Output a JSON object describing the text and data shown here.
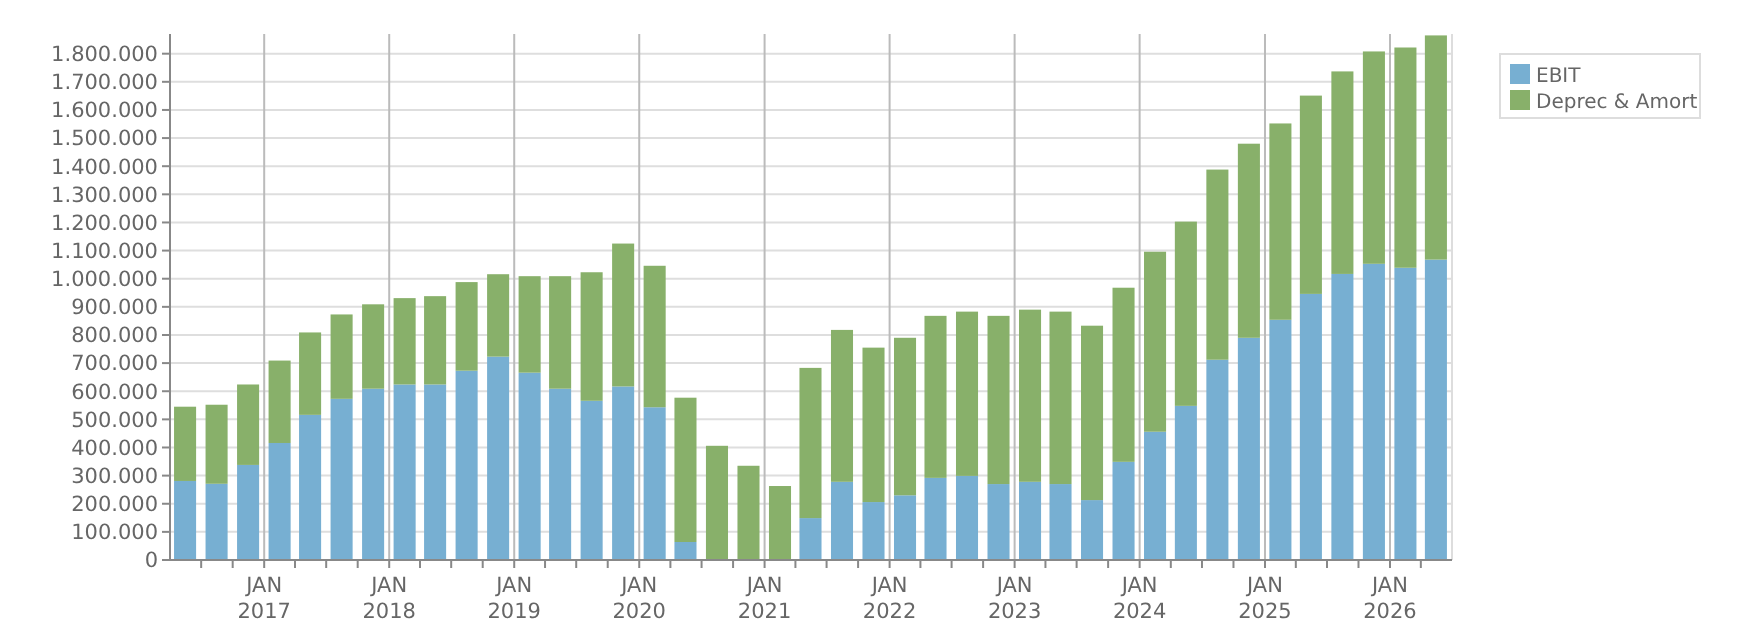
{
  "chart_data": {
    "type": "bar",
    "stacked": true,
    "x": [
      "2016-05-15",
      "2016-08-15",
      "2016-11-15",
      "2017-02-15",
      "2017-05-15",
      "2017-08-15",
      "2017-11-15",
      "2018-02-15",
      "2018-05-15",
      "2018-08-15",
      "2018-11-15",
      "2019-02-15",
      "2019-05-15",
      "2019-08-15",
      "2019-11-15",
      "2020-02-15",
      "2020-05-15",
      "2020-08-15",
      "2020-11-15",
      "2021-02-15",
      "2021-05-15",
      "2021-08-15",
      "2021-11-15",
      "2022-02-15",
      "2022-05-15",
      "2022-08-15",
      "2022-11-15",
      "2023-02-15",
      "2023-05-15",
      "2023-08-15",
      "2023-11-15",
      "2024-02-15",
      "2024-05-15",
      "2024-08-15",
      "2024-11-15",
      "2025-02-15",
      "2025-05-15",
      "2025-08-15",
      "2025-11-15",
      "2026-02-15",
      "2026-05-15"
    ],
    "series": [
      {
        "name": "EBIT",
        "color": "#77afd2",
        "values": [
          281000,
          271000,
          338000,
          416000,
          516000,
          573000,
          609000,
          624000,
          624000,
          673000,
          723000,
          666000,
          609000,
          566000,
          617000,
          543000,
          64000,
          0,
          0,
          0,
          149000,
          278000,
          206000,
          230000,
          292000,
          299000,
          270000,
          278000,
          270000,
          213000,
          349000,
          456000,
          548000,
          712000,
          790000,
          854000,
          946000,
          1017000,
          1053000,
          1039000,
          1068000
        ]
      },
      {
        "name": "Deprec & Amort",
        "color": "#88b06a",
        "values": [
          264000,
          281000,
          286000,
          293000,
          293000,
          300000,
          300000,
          307000,
          314000,
          315000,
          293000,
          343000,
          400000,
          457000,
          508000,
          503000,
          513000,
          406000,
          335000,
          263000,
          534000,
          540000,
          549000,
          560000,
          576000,
          584000,
          598000,
          612000,
          613000,
          620000,
          619000,
          640000,
          655000,
          676000,
          690000,
          698000,
          705000,
          720000,
          755000,
          783000,
          797000
        ]
      }
    ],
    "xlim": [
      "2016-04-01",
      "2026-07-01"
    ],
    "xticks": [
      {
        "value": "2016-07-01",
        "label": null
      },
      {
        "value": "2016-10-01",
        "label": null
      },
      {
        "value": "2017-01-01",
        "label": "JAN 2017"
      },
      {
        "value": "2017-04-01",
        "label": null
      },
      {
        "value": "2017-07-01",
        "label": null
      },
      {
        "value": "2017-10-01",
        "label": null
      },
      {
        "value": "2018-01-01",
        "label": "JAN 2018"
      },
      {
        "value": "2018-04-01",
        "label": null
      },
      {
        "value": "2018-07-01",
        "label": null
      },
      {
        "value": "2018-10-01",
        "label": null
      },
      {
        "value": "2019-01-01",
        "label": "JAN 2019"
      },
      {
        "value": "2019-04-01",
        "label": null
      },
      {
        "value": "2019-07-01",
        "label": null
      },
      {
        "value": "2019-10-01",
        "label": null
      },
      {
        "value": "2020-01-01",
        "label": "JAN 2020"
      },
      {
        "value": "2020-04-01",
        "label": null
      },
      {
        "value": "2020-07-01",
        "label": null
      },
      {
        "value": "2020-10-01",
        "label": null
      },
      {
        "value": "2021-01-01",
        "label": "JAN 2021"
      },
      {
        "value": "2021-04-01",
        "label": null
      },
      {
        "value": "2021-07-01",
        "label": null
      },
      {
        "value": "2021-10-01",
        "label": null
      },
      {
        "value": "2022-01-01",
        "label": "JAN 2022"
      },
      {
        "value": "2022-04-01",
        "label": null
      },
      {
        "value": "2022-07-01",
        "label": null
      },
      {
        "value": "2022-10-01",
        "label": null
      },
      {
        "value": "2023-01-01",
        "label": "JAN 2023"
      },
      {
        "value": "2023-04-01",
        "label": null
      },
      {
        "value": "2023-07-01",
        "label": null
      },
      {
        "value": "2023-10-01",
        "label": null
      },
      {
        "value": "2024-01-01",
        "label": "JAN 2024"
      },
      {
        "value": "2024-04-01",
        "label": null
      },
      {
        "value": "2024-07-01",
        "label": null
      },
      {
        "value": "2024-10-01",
        "label": null
      },
      {
        "value": "2025-01-01",
        "label": "JAN 2025"
      },
      {
        "value": "2025-04-01",
        "label": null
      },
      {
        "value": "2025-07-01",
        "label": null
      },
      {
        "value": "2025-10-01",
        "label": null
      },
      {
        "value": "2026-01-01",
        "label": "JAN 2026"
      },
      {
        "value": "2026-04-01",
        "label": null
      }
    ],
    "ylim": [
      0,
      1870000
    ],
    "yticks": [
      0,
      {
        "value": 100000,
        "label": "100.000"
      },
      {
        "value": 200000,
        "label": "200.000"
      },
      {
        "value": 300000,
        "label": "300.000"
      },
      {
        "value": 400000,
        "label": "400.000"
      },
      {
        "value": 500000,
        "label": "500.000"
      },
      {
        "value": 600000,
        "label": "600.000"
      },
      {
        "value": 700000,
        "label": "700.000"
      },
      {
        "value": 800000,
        "label": "800.000"
      },
      {
        "value": 900000,
        "label": "900.000"
      },
      {
        "value": 1000000,
        "label": "1.000.000"
      },
      {
        "value": 1100000,
        "label": "1.100.000"
      },
      {
        "value": 1200000,
        "label": "1.200.000"
      },
      {
        "value": 1300000,
        "label": "1.300.000"
      },
      {
        "value": 1400000,
        "label": "1.400.000"
      },
      {
        "value": 1500000,
        "label": "1.500.000"
      },
      {
        "value": 1600000,
        "label": "1.600.000"
      },
      {
        "value": 1700000,
        "label": "1.700.000"
      },
      {
        "value": 1800000,
        "label": "1.800.000"
      }
    ],
    "grid": true,
    "legend": "top right"
  }
}
